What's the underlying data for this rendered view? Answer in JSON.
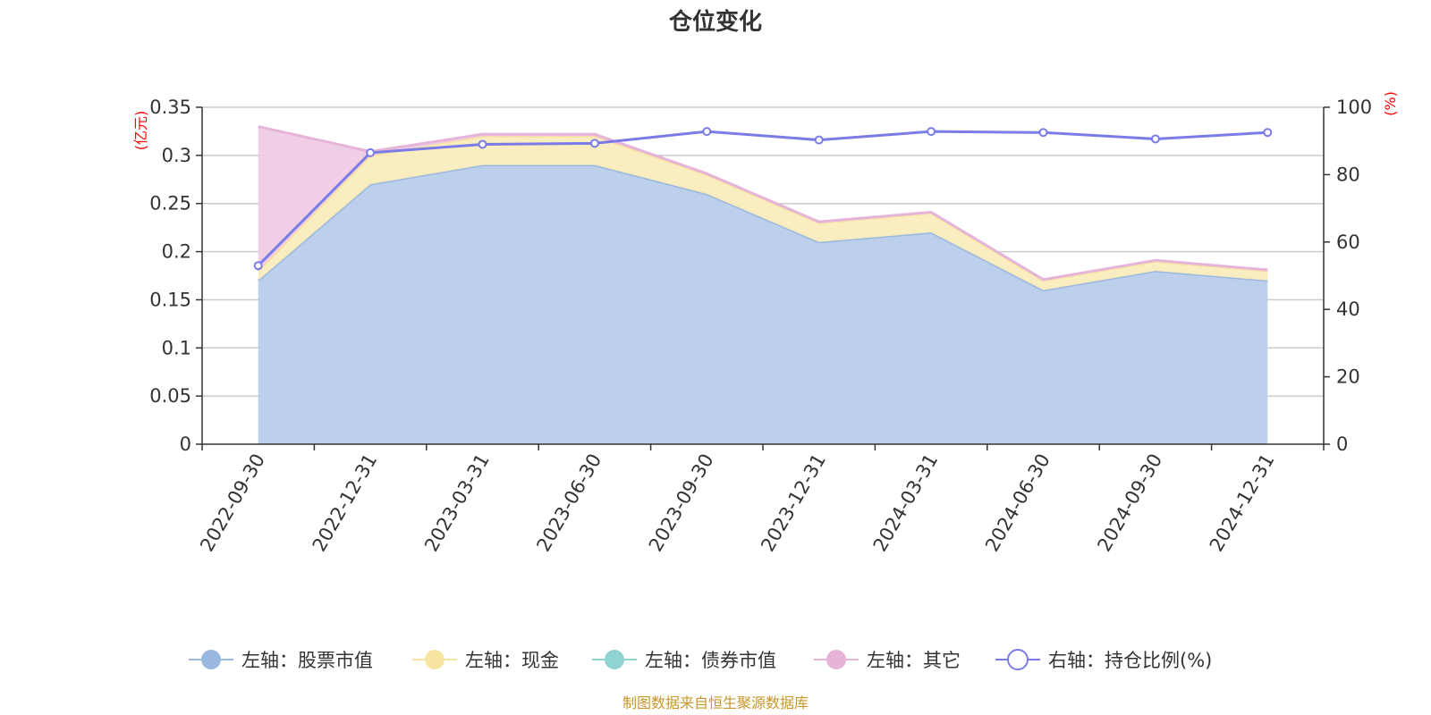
{
  "chart_data": {
    "type": "area",
    "title": "仓位变化",
    "categories": [
      "2022-09-30",
      "2022-12-31",
      "2023-03-31",
      "2023-06-30",
      "2023-09-30",
      "2023-12-31",
      "2024-03-31",
      "2024-06-30",
      "2024-09-30",
      "2024-12-31"
    ],
    "left_axis": {
      "unit": "(亿元)",
      "ylim": [
        0,
        0.35
      ],
      "ticks": [
        "0",
        "0.05",
        "0.1",
        "0.15",
        "0.2",
        "0.25",
        "0.3",
        "0.35"
      ]
    },
    "right_axis": {
      "unit": "(%)",
      "ylim": [
        0,
        100
      ],
      "ticks": [
        "0",
        "20",
        "40",
        "60",
        "80",
        "100"
      ]
    },
    "series": [
      {
        "name": "左轴：股票市值",
        "type": "area",
        "axis": "left",
        "color": "#9ab8e0",
        "fill": "#b8cdeb",
        "values": [
          0.17,
          0.27,
          0.29,
          0.29,
          0.26,
          0.21,
          0.22,
          0.16,
          0.18,
          0.17
        ]
      },
      {
        "name": "左轴：现金",
        "type": "area",
        "axis": "left",
        "color": "#f7e4a0",
        "fill": "#faecbc",
        "values": [
          0.01,
          0.03,
          0.03,
          0.03,
          0.02,
          0.02,
          0.02,
          0.01,
          0.01,
          0.01
        ]
      },
      {
        "name": "左轴：债券市值",
        "type": "area",
        "axis": "left",
        "color": "#8fd3d3",
        "fill": "#b5e3e3",
        "values": [
          0,
          0,
          0,
          0,
          0,
          0,
          0,
          0,
          0,
          0
        ]
      },
      {
        "name": "左轴：其它",
        "type": "area",
        "axis": "left",
        "color": "#e6b3d9",
        "fill": "#eecbe5",
        "values": [
          0.15,
          0.004,
          0.002,
          0.002,
          0.001,
          0.001,
          0.001,
          0.001,
          0.001,
          0.001
        ]
      },
      {
        "name": "右轴：持仓比例(%)",
        "type": "line",
        "axis": "right",
        "color": "#7b7be8",
        "values": [
          53,
          86.5,
          89,
          89.3,
          92.8,
          90.3,
          92.8,
          92.5,
          90.6,
          92.5
        ]
      }
    ],
    "grid": true,
    "legend_position": "bottom"
  },
  "source_note": "制图数据来自恒生聚源数据库"
}
